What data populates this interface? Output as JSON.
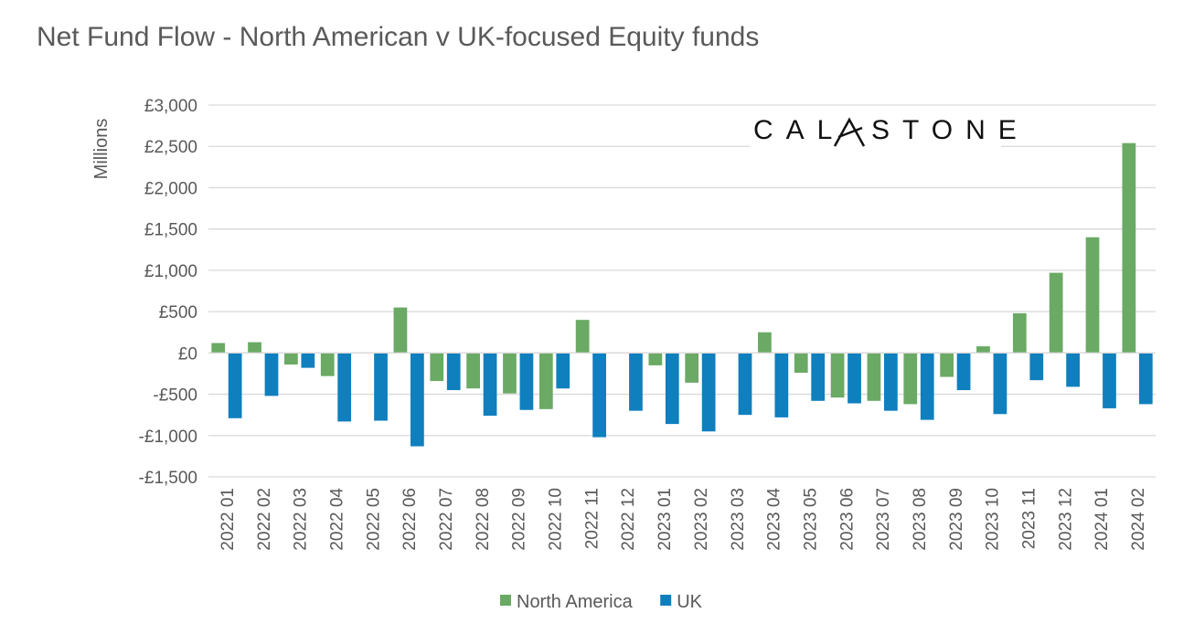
{
  "chart_data": {
    "type": "bar",
    "title": "Net Fund Flow - North American v UK-focused Equity funds",
    "ylabel": "Millions",
    "xlabel": "",
    "ylim": [
      -1500,
      3000
    ],
    "yticks": [
      3000,
      2500,
      2000,
      1500,
      1000,
      500,
      0,
      -500,
      -1000,
      -1500
    ],
    "ytick_labels": [
      "£3,000",
      "£2,500",
      "£2,000",
      "£1,500",
      "£1,000",
      "£500",
      "£0",
      "-£500",
      "-£1,000",
      "-£1,500"
    ],
    "grid": true,
    "legend_position": "bottom",
    "categories": [
      "2022 01",
      "2022 02",
      "2022 03",
      "2022 04",
      "2022 05",
      "2022 06",
      "2022 07",
      "2022 08",
      "2022 09",
      "2022 10",
      "2022 11",
      "2022 12",
      "2023 01",
      "2023 02",
      "2023 03",
      "2023 04",
      "2023 05",
      "2023 06",
      "2023 07",
      "2023 08",
      "2023 09",
      "2023 10",
      "2023 11",
      "2023 12",
      "2024 01",
      "2024 02"
    ],
    "series": [
      {
        "name": "North America",
        "color": "#6aaa64",
        "values": [
          120,
          130,
          -140,
          -280,
          0,
          550,
          -340,
          -430,
          -490,
          -680,
          400,
          0,
          -150,
          -360,
          0,
          250,
          -240,
          -540,
          -580,
          -620,
          -290,
          80,
          480,
          970,
          1400,
          2540
        ]
      },
      {
        "name": "UK",
        "color": "#0f7fbe",
        "values": [
          -790,
          -520,
          -180,
          -830,
          -820,
          -1130,
          -450,
          -760,
          -690,
          -430,
          -1020,
          -700,
          -860,
          -950,
          -750,
          -780,
          -580,
          -610,
          -700,
          -810,
          -450,
          -740,
          -330,
          -410,
          -670,
          -620
        ]
      }
    ]
  },
  "logo": {
    "text": "CALASTONE",
    "color": "#111111"
  }
}
